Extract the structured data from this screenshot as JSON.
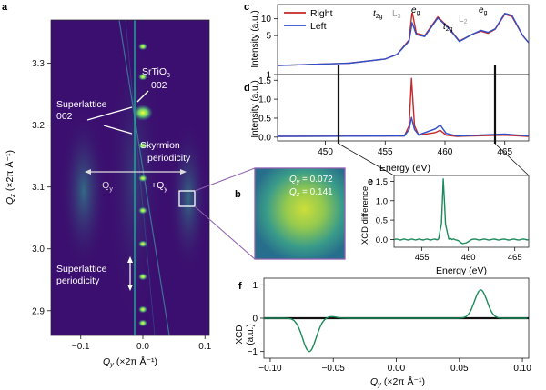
{
  "panel_letters": {
    "a": "a",
    "b": "b",
    "c": "c",
    "d": "d",
    "e": "e",
    "f": "f"
  },
  "colors": {
    "map_background": "#3b0f6f",
    "map_bright": "#e8f52a",
    "right": "#c62828",
    "left": "#2f4fc9",
    "xcd": "#1c8a5a",
    "inset_border": "#8e5fb0"
  },
  "panel_a": {
    "y_label_main": "Q",
    "y_label_sub": "z",
    "y_label_unit": " (×2π Å⁻¹)",
    "x_label_main": "Q",
    "x_label_sub": "y",
    "x_label_unit": " (×2π Å⁻¹)",
    "y_ticks": [
      "3.3",
      "3.2",
      "3.1",
      "3.0",
      "2.9"
    ],
    "x_ticks": [
      "−0.1",
      "0.0",
      "0.1"
    ],
    "annotations": {
      "srtio3_line1": "SrTiO",
      "srtio3_sub": "3",
      "srtio3_line2": "002",
      "superlattice_line1": "Superlattice",
      "superlattice_line2": "002",
      "skyrmion_line1": "Skyrmion",
      "skyrmion_line2": "periodicity",
      "minus_qy": "−Q",
      "minus_qy_sub": "y",
      "plus_qy": "+Q",
      "plus_qy_sub": "y",
      "sl_period_line1": "Superlattice",
      "sl_period_line2": "periodicity"
    }
  },
  "panel_b": {
    "qy_label": "Q",
    "qy_sub": "y",
    "qy_value": " = 0.072",
    "qz_label": "Q",
    "qz_sub": "z",
    "qz_value": " = 0.141"
  },
  "chart_data": [
    {
      "id": "c",
      "type": "line",
      "ylabel": "Intensity (a.u.)",
      "yscale": "log",
      "yticks": [
        "1",
        "5",
        "10"
      ],
      "legend": [
        "Right",
        "Left"
      ],
      "legend_placement": "top-left",
      "annotations": [
        "t2g",
        "L3",
        "eg",
        "t2g",
        "L2",
        "eg"
      ],
      "series": [
        {
          "name": "Right",
          "points": [
            [
              446,
              1.45
            ],
            [
              452,
              1.6
            ],
            [
              455,
              1.9
            ],
            [
              456,
              2.3
            ],
            [
              457,
              4.2
            ],
            [
              457.25,
              13.5
            ],
            [
              457.6,
              5.5
            ],
            [
              458.3,
              5.0
            ],
            [
              459.4,
              10.8
            ],
            [
              460.3,
              7.0
            ],
            [
              461.2,
              4.0
            ],
            [
              462.3,
              5.3
            ],
            [
              463,
              6.0
            ],
            [
              463.6,
              5.5
            ],
            [
              464.2,
              6.5
            ],
            [
              465,
              12.0
            ],
            [
              465.6,
              11.0
            ],
            [
              466.5,
              5.0
            ],
            [
              467,
              3.7
            ]
          ]
        },
        {
          "name": "Left",
          "points": [
            [
              446,
              1.45
            ],
            [
              452,
              1.6
            ],
            [
              455,
              1.9
            ],
            [
              456,
              2.3
            ],
            [
              457,
              4.0
            ],
            [
              457.25,
              8.5
            ],
            [
              457.6,
              5.2
            ],
            [
              458.3,
              4.8
            ],
            [
              459.4,
              10.3
            ],
            [
              460.3,
              6.8
            ],
            [
              461.2,
              3.9
            ],
            [
              462.3,
              5.3
            ],
            [
              463,
              6.2
            ],
            [
              463.6,
              5.7
            ],
            [
              464.2,
              6.6
            ],
            [
              465,
              12.5
            ],
            [
              465.6,
              11.5
            ],
            [
              466.5,
              5.0
            ],
            [
              467,
              3.7
            ]
          ]
        }
      ]
    },
    {
      "id": "d",
      "type": "line",
      "ylabel": "Intensity (a.u.)",
      "xlabel": "Energy (eV)",
      "xticks": [
        "450",
        "455",
        "460",
        "465"
      ],
      "yticks": [
        "0.0",
        "0.5",
        "1.0",
        "1.5"
      ],
      "xlim": [
        446,
        467
      ],
      "ylim": [
        -0.1,
        1.65
      ],
      "series": [
        {
          "name": "Right",
          "points": [
            [
              446,
              0.02
            ],
            [
              456.6,
              0.03
            ],
            [
              457.0,
              0.3
            ],
            [
              457.2,
              1.55
            ],
            [
              457.45,
              0.3
            ],
            [
              457.8,
              0.05
            ],
            [
              459.2,
              0.12
            ],
            [
              459.6,
              0.18
            ],
            [
              460.1,
              0.05
            ],
            [
              461,
              0.02
            ],
            [
              465,
              0.05
            ],
            [
              467,
              0.02
            ]
          ]
        },
        {
          "name": "Left",
          "points": [
            [
              446,
              0.02
            ],
            [
              456.6,
              0.03
            ],
            [
              457.0,
              0.2
            ],
            [
              457.2,
              0.52
            ],
            [
              457.45,
              0.2
            ],
            [
              457.8,
              0.06
            ],
            [
              459.2,
              0.22
            ],
            [
              459.6,
              0.32
            ],
            [
              460.1,
              0.1
            ],
            [
              461,
              0.03
            ],
            [
              465,
              0.08
            ],
            [
              467,
              0.03
            ]
          ]
        }
      ]
    },
    {
      "id": "e",
      "type": "line",
      "ylabel": "XCD difference",
      "xlabel": "Energy (eV)",
      "xticks": [
        "455",
        "460",
        "465"
      ],
      "yticks": [
        "0.0",
        "0.5",
        "1.0",
        "1.5"
      ],
      "xlim": [
        452,
        466.5
      ],
      "ylim": [
        -0.2,
        1.65
      ],
      "series": [
        {
          "name": "",
          "points": [
            [
              452,
              0
            ],
            [
              456.8,
              0.0
            ],
            [
              457.1,
              0.4
            ],
            [
              457.3,
              1.55
            ],
            [
              457.55,
              0.4
            ],
            [
              457.9,
              0.02
            ],
            [
              458.6,
              0.0
            ],
            [
              459.4,
              -0.1
            ],
            [
              459.8,
              -0.08
            ],
            [
              460.3,
              0.0
            ],
            [
              466.5,
              0.0
            ]
          ]
        }
      ]
    },
    {
      "id": "f",
      "type": "line",
      "ylabel": "XCD",
      "ylabel2": "(a.u.)",
      "xlabel": "Q",
      "xlabel_sub": "y",
      "xlabel_unit": " (×2π Å⁻¹)",
      "xticks": [
        "−0.10",
        "−0.05",
        "0.00",
        "0.05",
        "0.10"
      ],
      "yticks": [
        "1",
        "0",
        "−1"
      ],
      "xlim": [
        -0.105,
        0.105
      ],
      "ylim": [
        -1.2,
        1.2
      ],
      "series": [
        {
          "name": "",
          "points": "gaussians"
        }
      ]
    }
  ]
}
